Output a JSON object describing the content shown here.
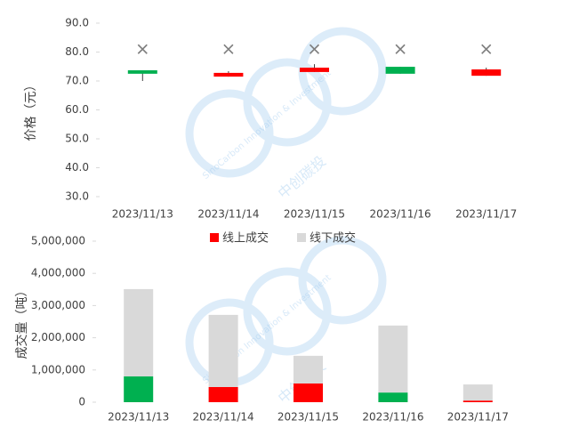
{
  "chart_data": [
    {
      "type": "candlestick",
      "y_label": "价格（元）",
      "categories": [
        "2023/11/13",
        "2023/11/14",
        "2023/11/15",
        "2023/11/16",
        "2023/11/17"
      ],
      "open": [
        73.7,
        71.5,
        73.1,
        74.9,
        71.8
      ],
      "high": [
        73.7,
        73.4,
        75.8,
        74.9,
        74.6
      ],
      "low": [
        70.0,
        71.5,
        73.1,
        72.5,
        71.8
      ],
      "close": [
        72.5,
        72.8,
        74.6,
        72.5,
        74.0
      ],
      "up_color": "#ff0000",
      "down_color": "#00b050",
      "markers": {
        "values": [
          81,
          81,
          81,
          81,
          81
        ],
        "color": "#7f7f7f"
      },
      "ylim": [
        30,
        90
      ],
      "yticks": [
        {
          "value": 30,
          "label": "30.0"
        },
        {
          "value": 40,
          "label": "40.0"
        },
        {
          "value": 50,
          "label": "50.0"
        },
        {
          "value": 60,
          "label": "60.0"
        },
        {
          "value": 70,
          "label": "70.0"
        },
        {
          "value": 80,
          "label": "80.0"
        },
        {
          "value": 90,
          "label": "90.0"
        }
      ],
      "grid": false
    },
    {
      "type": "stacked-bar",
      "y_label": "成交量（吨）",
      "categories": [
        "2023/11/13",
        "2023/11/14",
        "2023/11/15",
        "2023/11/16",
        "2023/11/17"
      ],
      "series": [
        {
          "name": "线上成交",
          "color": "#ff0000",
          "colors": [
            "#00b050",
            "#ff0000",
            "#ff0000",
            "#00b050",
            "#ff0000"
          ],
          "values": [
            800000,
            470000,
            580000,
            300000,
            50000
          ]
        },
        {
          "name": "线下成交",
          "color": "#d9d9d9",
          "values": [
            2710000,
            2240000,
            860000,
            2080000,
            500000
          ]
        }
      ],
      "legend": "top",
      "ylim": [
        0,
        5000000
      ],
      "yticks": [
        {
          "value": 0,
          "label": "0"
        },
        {
          "value": 1000000,
          "label": "1,000,000"
        },
        {
          "value": 2000000,
          "label": "2,000,000"
        },
        {
          "value": 3000000,
          "label": "3,000,000"
        },
        {
          "value": 4000000,
          "label": "4,000,000"
        },
        {
          "value": 5000000,
          "label": "5,000,000"
        }
      ],
      "grid": false
    }
  ],
  "watermark": {
    "name": "中创碳投",
    "tagline": "SinoCarbon Innovation & Investment"
  }
}
